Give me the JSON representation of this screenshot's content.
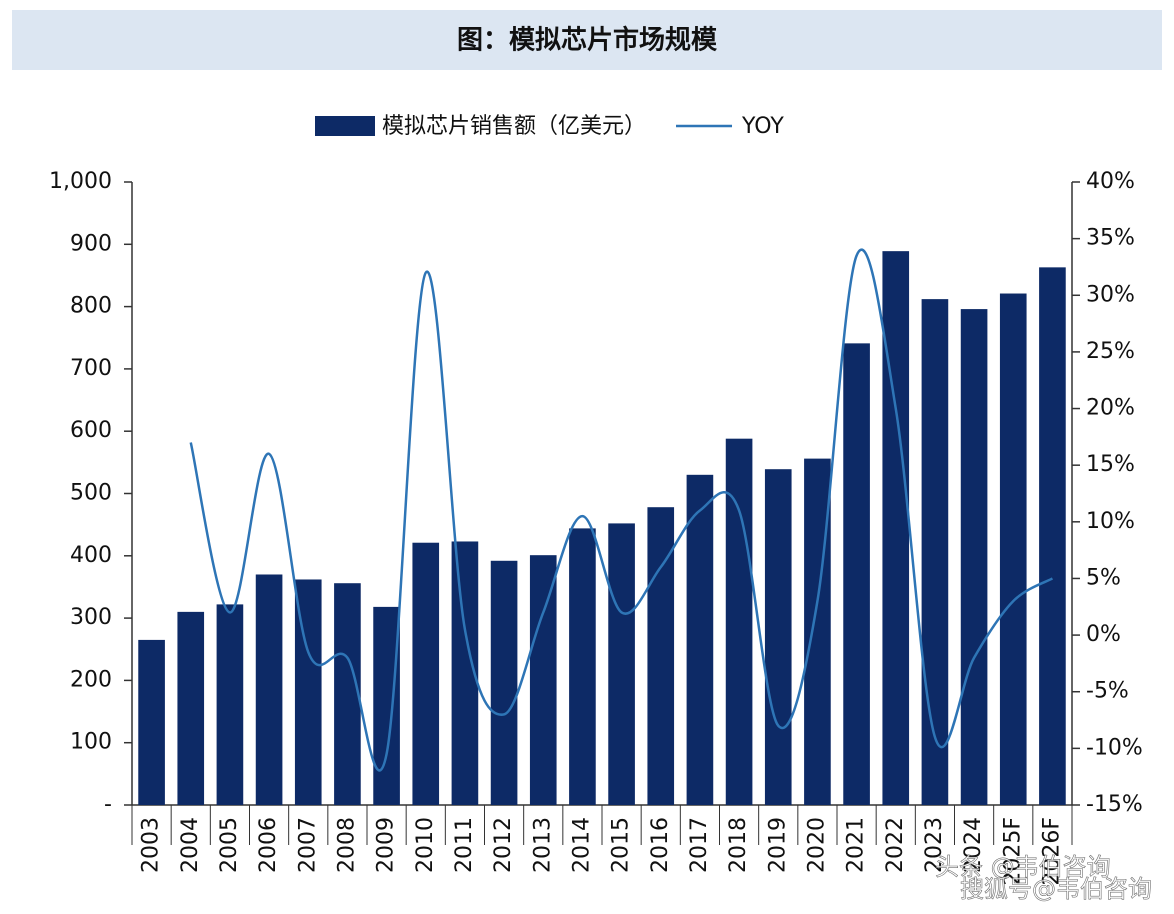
{
  "chart_data": {
    "type": "bar_line",
    "title": "图：模拟芯片市场规模",
    "categories": [
      "2003",
      "2004",
      "2005",
      "2006",
      "2007",
      "2008",
      "2009",
      "2010",
      "2011",
      "2012",
      "2013",
      "2014",
      "2015",
      "2016",
      "2017",
      "2018",
      "2019",
      "2020",
      "2021",
      "2022",
      "2023",
      "2024",
      "2025F",
      "2026F"
    ],
    "series": [
      {
        "name": "模拟芯片销售额（亿美元）",
        "type": "bar",
        "color": "#0d2a66",
        "values": [
          265,
          310,
          322,
          370,
          362,
          356,
          318,
          421,
          423,
          392,
          401,
          444,
          452,
          478,
          530,
          588,
          539,
          556,
          741,
          889,
          812,
          796,
          821,
          863
        ]
      },
      {
        "name": "YOY",
        "type": "line",
        "axis": "y2",
        "color": "#2e75b6",
        "values": [
          null,
          17,
          2,
          16,
          -1.5,
          -2,
          -10.5,
          32,
          0.5,
          -7,
          2,
          10.5,
          2,
          6,
          11,
          11,
          -8,
          3,
          33.5,
          20,
          -9,
          -2,
          3,
          5
        ]
      }
    ],
    "ylim": [
      0,
      1000
    ],
    "yticks": [
      {
        "value": 0,
        "label": "-"
      },
      100,
      200,
      300,
      400,
      500,
      600,
      700,
      800,
      900,
      {
        "value": 1000,
        "label": "1,000"
      }
    ],
    "y2lim": [
      -15,
      40
    ],
    "y2ticks": [
      {
        "value": -15,
        "label": "-15%"
      },
      {
        "value": -10,
        "label": "-10%"
      },
      {
        "value": -5,
        "label": "-5%"
      },
      {
        "value": 0,
        "label": "0%"
      },
      {
        "value": 5,
        "label": "5%"
      },
      {
        "value": 10,
        "label": "10%"
      },
      {
        "value": 15,
        "label": "15%"
      },
      {
        "value": 20,
        "label": "20%"
      },
      {
        "value": 25,
        "label": "25%"
      },
      {
        "value": 30,
        "label": "30%"
      },
      {
        "value": 35,
        "label": "35%"
      },
      {
        "value": 40,
        "label": "40%"
      }
    ],
    "annotations": [
      "头条 @韦伯咨询",
      "搜狐号@韦伯咨询"
    ]
  }
}
